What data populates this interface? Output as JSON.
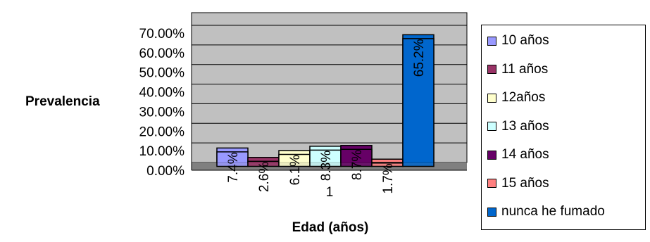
{
  "chart_data": {
    "type": "bar",
    "title": "",
    "xlabel": "Edad (años)",
    "ylabel": "Prevalencia",
    "categories": [
      "1"
    ],
    "ylim": [
      0,
      0.75
    ],
    "yticks": [
      "0.00%",
      "10.00%",
      "20.00%",
      "30.00%",
      "40.00%",
      "50.00%",
      "60.00%",
      "70.00%"
    ],
    "grid": true,
    "legend_position": "right",
    "series": [
      {
        "name": "10 años",
        "value": 0.074,
        "label": "7.4%",
        "color": "#9999ff"
      },
      {
        "name": "11 años",
        "value": 0.026,
        "label": "2.6%",
        "color": "#993366"
      },
      {
        "name": "12años",
        "value": 0.061,
        "label": "6.1%",
        "color": "#ffffcc"
      },
      {
        "name": "13 años",
        "value": 0.083,
        "label": "8.3%",
        "color": "#ccffff"
      },
      {
        "name": "14 años",
        "value": 0.087,
        "label": "8.7%",
        "color": "#660066"
      },
      {
        "name": "15 años",
        "value": 0.017,
        "label": "1.7%",
        "color": "#ff8080"
      },
      {
        "name": "nunca he fumado",
        "value": 0.652,
        "label": "65.2%",
        "color": "#0066cc"
      }
    ],
    "plot_background": "#c0c0c0",
    "floor_color": "#808080"
  }
}
